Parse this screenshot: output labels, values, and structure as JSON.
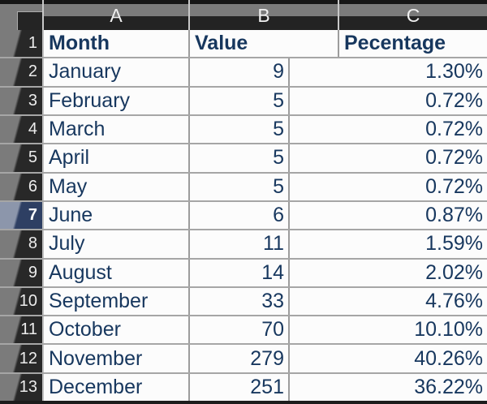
{
  "sheet": {
    "column_letters": {
      "a": "A",
      "b": "B",
      "c": "C"
    },
    "row1_number": "1",
    "header_row": {
      "a": "Month",
      "b": "Value",
      "c": "Pecentage"
    },
    "rows": [
      {
        "n": "2",
        "month": "January",
        "value": "9",
        "pct": "1.30%"
      },
      {
        "n": "3",
        "month": "February",
        "value": "5",
        "pct": "0.72%"
      },
      {
        "n": "4",
        "month": "March",
        "value": "5",
        "pct": "0.72%"
      },
      {
        "n": "5",
        "month": "April",
        "value": "5",
        "pct": "0.72%"
      },
      {
        "n": "6",
        "month": "May",
        "value": "5",
        "pct": "0.72%"
      },
      {
        "n": "7",
        "month": "June",
        "value": "6",
        "pct": "0.87%"
      },
      {
        "n": "8",
        "month": "July",
        "value": "11",
        "pct": "1.59%"
      },
      {
        "n": "9",
        "month": "August",
        "value": "14",
        "pct": "2.02%"
      },
      {
        "n": "10",
        "month": "September",
        "value": "33",
        "pct": "4.76%"
      },
      {
        "n": "11",
        "month": "October",
        "value": "70",
        "pct": "10.10%"
      },
      {
        "n": "12",
        "month": "November",
        "value": "279",
        "pct": "40.26%"
      },
      {
        "n": "13",
        "month": "December",
        "value": "251",
        "pct": "36.22%"
      }
    ],
    "active_row": "7"
  },
  "colors": {
    "header_gray": "#7b7b7b",
    "header_dark": "#232323",
    "active_row_light": "#8c96ab",
    "active_row_dark": "#2e3f63",
    "cell_text_navy": "#17375e",
    "gridline": "#a6a6a6",
    "cell_background": "#fcfcfc"
  }
}
